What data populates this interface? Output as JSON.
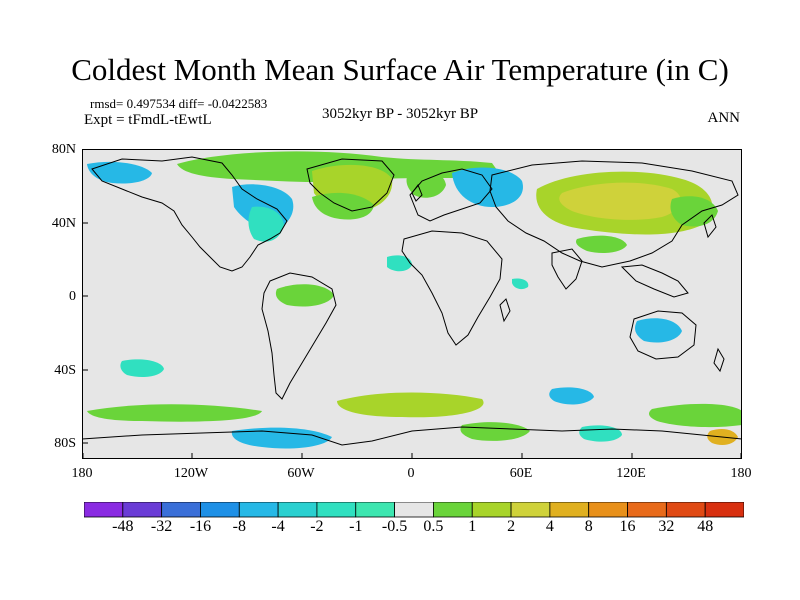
{
  "title": "Coldest Month Mean Surface Air Temperature (in C)",
  "stats_line": "rmsd= 0.497534  diff= -0.0422583",
  "experiment": "Expt = tFmdL-tEwtL",
  "period": "3052kyr BP - 3052kyr BP",
  "season": "ANN",
  "y_axis_labels": [
    "80N",
    "40N",
    "0",
    "40S",
    "80S"
  ],
  "x_axis_labels": [
    "180",
    "120W",
    "60W",
    "0",
    "60E",
    "120E",
    "180"
  ],
  "colorbar": {
    "labels": [
      "-48",
      "-32",
      "-16",
      "-8",
      "-4",
      "-2",
      "-1",
      "-0.5",
      "0.5",
      "1",
      "2",
      "4",
      "8",
      "16",
      "32",
      "48"
    ],
    "colors": [
      "#8a2be2",
      "#6a3cd6",
      "#3a6fd8",
      "#1e90e6",
      "#26b8e6",
      "#2ad0d0",
      "#30e0c0",
      "#3de6b0",
      "#e6e6e6",
      "#6ad43a",
      "#a8d42a",
      "#cfd23a",
      "#e0b020",
      "#e8901a",
      "#e86a1a",
      "#e04a14",
      "#d83010"
    ]
  },
  "background_color": "#e6e6e6",
  "coast_color": "#000000"
}
